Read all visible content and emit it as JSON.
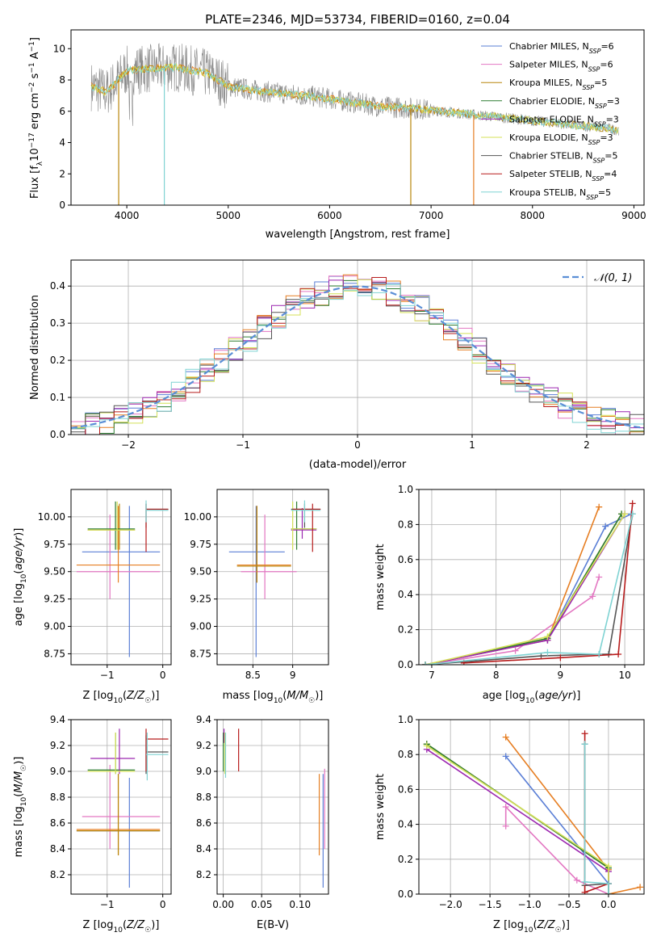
{
  "title": "PLATE=2346, MJD=53734, FIBERID=0160, z=0.04",
  "colors": {
    "Chabrier MILES": "#5b7fd6",
    "Salpeter MILES": "#e377c2",
    "Kroupa MILES": "#b8860b",
    "Chabrier ELODIE": "#2e7d32",
    "Salpeter ELODIE": "#9c27b0",
    "Kroupa ELODIE": "#d4e157",
    "Chabrier STELIB": "#555555",
    "Salpeter STELIB": "#b71c1c",
    "Kroupa STELIB": "#7fd3d3",
    "normal": "#5b8fd6",
    "spectrum": "#888888",
    "orange": "#e67e22"
  },
  "legend_top": {
    "entries": [
      {
        "name": "Chabrier MILES",
        "pre": "Chabrier MILES, N",
        "sub": "SSP",
        "post": "=6"
      },
      {
        "name": "Salpeter MILES",
        "pre": "Salpeter MILES, N",
        "sub": "SSP",
        "post": "=6"
      },
      {
        "name": "Kroupa MILES",
        "pre": "Kroupa MILES, N",
        "sub": "SSP",
        "post": "=5"
      },
      {
        "name": "Chabrier ELODIE",
        "pre": "Chabrier ELODIE, N",
        "sub": "SSP",
        "post": "=3"
      },
      {
        "name": "Salpeter ELODIE",
        "pre": "Salpeter ELODIE, N",
        "sub": "SSP",
        "post": "=3"
      },
      {
        "name": "Kroupa ELODIE",
        "pre": "Kroupa ELODIE, N",
        "sub": "SSP",
        "post": "=3"
      },
      {
        "name": "Chabrier STELIB",
        "pre": "Chabrier STELIB, N",
        "sub": "SSP",
        "post": "=5"
      },
      {
        "name": "Salpeter STELIB",
        "pre": "Salpeter STELIB, N",
        "sub": "SSP",
        "post": "=4"
      },
      {
        "name": "Kroupa STELIB",
        "pre": "Kroupa STELIB, N",
        "sub": "SSP",
        "post": "=5"
      }
    ]
  },
  "chart_data": [
    {
      "id": "spectrum",
      "type": "line",
      "xlabel": "wavelength [Angstrom, rest frame]",
      "ylabel": "Flux [f_λ 10^-17 erg cm^-2 s^-1 A^-1]",
      "xlim": [
        3450,
        9100
      ],
      "ylim": [
        0,
        11.2
      ],
      "xticks": [
        4000,
        5000,
        6000,
        7000,
        8000,
        9000
      ],
      "yticks": [
        0,
        2,
        4,
        6,
        8,
        10
      ],
      "continuum": {
        "x": [
          3650,
          3800,
          4000,
          4200,
          4500,
          4800,
          5000,
          5300,
          5600,
          5900,
          6200,
          6500,
          6800,
          7100,
          7400,
          7700,
          8000,
          8300,
          8600,
          8850
        ],
        "y": [
          7.6,
          7.2,
          8.6,
          8.7,
          8.8,
          8.4,
          7.6,
          7.3,
          7.1,
          6.9,
          6.6,
          6.3,
          6.2,
          6.0,
          5.8,
          5.6,
          5.4,
          5.2,
          5.0,
          4.8
        ]
      },
      "drops": [
        {
          "x": 3920,
          "color": "Kroupa MILES"
        },
        {
          "x": 4370,
          "color": "Kroupa STELIB"
        },
        {
          "x": 6800,
          "color": "Kroupa MILES"
        },
        {
          "x": 7420,
          "color": "orange"
        }
      ]
    },
    {
      "id": "residuals",
      "type": "histogram",
      "xlabel": "(data-model)/error",
      "ylabel": "Normed distribution",
      "xlim": [
        -2.5,
        2.5
      ],
      "ylim": [
        0,
        0.47
      ],
      "xticks": [
        -2,
        -1,
        0,
        1,
        2
      ],
      "yticks": [
        0.0,
        0.1,
        0.2,
        0.3,
        0.4
      ],
      "bin_width": 0.125,
      "legend": "𝒩(0, 1)"
    },
    {
      "id": "age_vs_Z",
      "type": "errorbar",
      "xlabel": "Z [log10(Z/Z☉)]",
      "ylabel": "age [log10(age/yr)]",
      "xlim": [
        -1.65,
        0.15
      ],
      "ylim": [
        8.65,
        10.25
      ],
      "xticks": [
        -1,
        0
      ],
      "yticks": [
        8.75,
        9.0,
        9.25,
        9.5,
        9.75,
        10.0
      ],
      "points": [
        {
          "c": "Chabrier MILES",
          "x": -0.6,
          "y": 9.68,
          "xe": [
            -1.45,
            -0.05
          ],
          "ye": [
            8.72,
            10.1
          ]
        },
        {
          "c": "Salpeter MILES",
          "x": -0.95,
          "y": 9.5,
          "xe": [
            -1.55,
            -0.05
          ],
          "ye": [
            9.25,
            10.02
          ]
        },
        {
          "c": "orange",
          "x": -0.8,
          "y": 9.56,
          "xe": [
            -1.55,
            -0.05
          ],
          "ye": [
            9.4,
            10.1
          ]
        },
        {
          "c": "Kroupa MILES",
          "x": -0.78,
          "y": 9.88,
          "xe": [
            -1.35,
            -0.5
          ],
          "ye": [
            9.7,
            10.12
          ]
        },
        {
          "c": "Chabrier ELODIE",
          "x": -0.85,
          "y": 9.89,
          "xe": [
            -1.35,
            -0.5
          ],
          "ye": [
            9.7,
            10.14
          ]
        },
        {
          "c": "Kroupa ELODIE",
          "x": -0.82,
          "y": 9.88,
          "xe": [
            -1.35,
            -0.5
          ],
          "ye": [
            9.7,
            10.14
          ]
        },
        {
          "c": "Chabrier STELIB",
          "x": -0.3,
          "y": 10.07,
          "xe": [
            -0.3,
            0.1
          ],
          "ye": [
            9.9,
            10.12
          ]
        },
        {
          "c": "Salpeter STELIB",
          "x": -0.3,
          "y": 10.07,
          "xe": [
            -0.3,
            0.1
          ],
          "ye": [
            9.68,
            10.12
          ]
        },
        {
          "c": "Kroupa STELIB",
          "x": -0.3,
          "y": 10.06,
          "xe": [
            -0.3,
            0.1
          ],
          "ye": [
            9.95,
            10.15
          ]
        }
      ]
    },
    {
      "id": "age_vs_mass",
      "type": "errorbar",
      "xlabel": "mass [log10(M/M☉)]",
      "ylabel": "",
      "xlim": [
        8.05,
        9.45
      ],
      "ylim": [
        8.65,
        10.25
      ],
      "xticks": [
        8.5,
        9.0
      ],
      "yticks": [
        8.75,
        9.0,
        9.25,
        9.5,
        9.75,
        10.0
      ],
      "points": [
        {
          "c": "Chabrier MILES",
          "x": 8.54,
          "y": 9.68,
          "xe": [
            8.2,
            8.9
          ],
          "ye": [
            8.72,
            10.1
          ]
        },
        {
          "c": "Salpeter MILES",
          "x": 8.65,
          "y": 9.5,
          "xe": [
            8.35,
            9.05
          ],
          "ye": [
            9.25,
            10.02
          ]
        },
        {
          "c": "orange",
          "x": 8.55,
          "y": 9.56,
          "xe": [
            8.3,
            8.98
          ],
          "ye": [
            9.4,
            10.1
          ]
        },
        {
          "c": "Kroupa MILES",
          "x": 8.55,
          "y": 9.55,
          "xe": [
            8.3,
            8.98
          ],
          "ye": [
            9.4,
            10.1
          ]
        },
        {
          "c": "Chabrier ELODIE",
          "x": 9.05,
          "y": 9.89,
          "xe": [
            8.98,
            9.3
          ],
          "ye": [
            9.7,
            10.14
          ]
        },
        {
          "c": "Salpeter ELODIE",
          "x": 9.12,
          "y": 9.88,
          "xe": [
            8.98,
            9.3
          ],
          "ye": [
            9.8,
            10.08
          ]
        },
        {
          "c": "Kroupa ELODIE",
          "x": 9.0,
          "y": 9.89,
          "xe": [
            8.98,
            9.3
          ],
          "ye": [
            9.7,
            10.14
          ]
        },
        {
          "c": "Chabrier STELIB",
          "x": 9.15,
          "y": 10.07,
          "xe": [
            8.98,
            9.35
          ],
          "ye": [
            9.9,
            10.12
          ]
        },
        {
          "c": "Salpeter STELIB",
          "x": 9.25,
          "y": 10.07,
          "xe": [
            9.0,
            9.35
          ],
          "ye": [
            9.68,
            10.12
          ]
        },
        {
          "c": "Kroupa STELIB",
          "x": 9.15,
          "y": 10.06,
          "xe": [
            8.98,
            9.35
          ],
          "ye": [
            9.95,
            10.15
          ]
        }
      ]
    },
    {
      "id": "mass_weight_vs_age",
      "type": "line",
      "xlabel": "age [log10(age/yr)]",
      "ylabel": "mass weight",
      "xlim": [
        6.8,
        10.3
      ],
      "ylim": [
        0,
        1.0
      ],
      "xticks": [
        7,
        8,
        9,
        10
      ],
      "yticks": [
        0.0,
        0.2,
        0.4,
        0.6,
        0.8,
        1.0
      ],
      "series": [
        {
          "c": "Chabrier MILES",
          "x": [
            6.9,
            8.8,
            9.7,
            10.1
          ],
          "y": [
            0.0,
            0.14,
            0.79,
            0.86
          ]
        },
        {
          "c": "Salpeter MILES",
          "x": [
            6.9,
            8.3,
            9.5,
            9.6
          ],
          "y": [
            0.0,
            0.08,
            0.39,
            0.5
          ]
        },
        {
          "c": "orange",
          "x": [
            6.9,
            8.8,
            9.6
          ],
          "y": [
            0.0,
            0.14,
            0.9
          ]
        },
        {
          "c": "Kroupa MILES",
          "x": [
            6.9,
            8.8,
            9.95
          ],
          "y": [
            0.0,
            0.15,
            0.86
          ]
        },
        {
          "c": "Chabrier ELODIE",
          "x": [
            6.9,
            8.8,
            9.95
          ],
          "y": [
            0.0,
            0.15,
            0.86
          ]
        },
        {
          "c": "Salpeter ELODIE",
          "x": [
            6.9,
            8.8,
            10.0
          ],
          "y": [
            0.0,
            0.14,
            0.86
          ]
        },
        {
          "c": "Kroupa ELODIE",
          "x": [
            6.9,
            8.8,
            10.0
          ],
          "y": [
            0.0,
            0.16,
            0.86
          ]
        },
        {
          "c": "Chabrier STELIB",
          "x": [
            6.9,
            8.7,
            9.6,
            9.75,
            10.12
          ],
          "y": [
            0.0,
            0.05,
            0.06,
            0.06,
            0.86
          ]
        },
        {
          "c": "Salpeter STELIB",
          "x": [
            7.5,
            9.0,
            9.9,
            10.12
          ],
          "y": [
            0.01,
            0.04,
            0.06,
            0.92
          ]
        },
        {
          "c": "Kroupa STELIB",
          "x": [
            6.9,
            8.8,
            9.6,
            10.12
          ],
          "y": [
            0.0,
            0.07,
            0.06,
            0.86
          ]
        }
      ]
    },
    {
      "id": "mass_vs_Z",
      "type": "errorbar",
      "xlabel": "Z [log10(Z/Z☉)]",
      "ylabel": "mass [log10(M/M☉)]",
      "xlim": [
        -1.65,
        0.15
      ],
      "ylim": [
        8.05,
        9.4
      ],
      "xticks": [
        -1,
        0
      ],
      "yticks": [
        8.2,
        8.4,
        8.6,
        8.8,
        9.0,
        9.2,
        9.4
      ],
      "points": [
        {
          "c": "Chabrier MILES",
          "x": -0.6,
          "y": 8.54,
          "xe": [
            -1.55,
            -0.05
          ],
          "ye": [
            8.1,
            8.95
          ]
        },
        {
          "c": "Salpeter MILES",
          "x": -0.95,
          "y": 8.65,
          "xe": [
            -1.45,
            -0.05
          ],
          "ye": [
            8.4,
            9.05
          ]
        },
        {
          "c": "orange",
          "x": -0.8,
          "y": 8.55,
          "xe": [
            -1.55,
            -0.05
          ],
          "ye": [
            8.35,
            8.98
          ]
        },
        {
          "c": "Kroupa MILES",
          "x": -0.8,
          "y": 8.54,
          "xe": [
            -1.55,
            -0.05
          ],
          "ye": [
            8.35,
            8.98
          ]
        },
        {
          "c": "Chabrier ELODIE",
          "x": -0.85,
          "y": 9.01,
          "xe": [
            -1.35,
            -0.5
          ],
          "ye": [
            8.98,
            9.3
          ]
        },
        {
          "c": "Salpeter ELODIE",
          "x": -0.78,
          "y": 9.1,
          "xe": [
            -1.3,
            -0.5
          ],
          "ye": [
            8.98,
            9.33
          ]
        },
        {
          "c": "Kroupa ELODIE",
          "x": -0.85,
          "y": 9.0,
          "xe": [
            -1.35,
            -0.5
          ],
          "ye": [
            8.98,
            9.3
          ]
        },
        {
          "c": "Chabrier STELIB",
          "x": -0.3,
          "y": 9.15,
          "xe": [
            -0.3,
            0.1
          ],
          "ye": [
            8.98,
            9.28
          ]
        },
        {
          "c": "Salpeter STELIB",
          "x": -0.3,
          "y": 9.25,
          "xe": [
            -0.3,
            0.1
          ],
          "ye": [
            9.0,
            9.33
          ]
        },
        {
          "c": "Kroupa STELIB",
          "x": -0.28,
          "y": 9.13,
          "xe": [
            -0.3,
            0.1
          ],
          "ye": [
            8.93,
            9.3
          ]
        }
      ]
    },
    {
      "id": "mass_vs_EBV",
      "type": "errorbar",
      "xlabel": "E(B-V)",
      "ylabel": "",
      "xlim": [
        -0.008,
        0.137
      ],
      "ylim": [
        8.05,
        9.4
      ],
      "xticks": [
        0.0,
        0.05,
        0.1
      ],
      "xticklabels": [
        "0.00",
        "0.05",
        "0.10"
      ],
      "yticks": [
        8.2,
        8.4,
        8.6,
        8.8,
        9.0,
        9.2,
        9.4
      ],
      "vlines": [
        {
          "c": "Chabrier MILES",
          "x": 0.13,
          "ye": [
            8.1,
            8.98
          ]
        },
        {
          "c": "Salpeter MILES",
          "x": 0.132,
          "ye": [
            8.4,
            9.02
          ]
        },
        {
          "c": "orange",
          "x": 0.125,
          "ye": [
            8.35,
            8.98
          ]
        },
        {
          "c": "Chabrier ELODIE",
          "x": 0.0,
          "ye": [
            9.0,
            9.3
          ]
        },
        {
          "c": "Salpeter ELODIE",
          "x": 0.001,
          "ye": [
            9.22,
            9.33
          ]
        },
        {
          "c": "Kroupa ELODIE",
          "x": 0.002,
          "ye": [
            8.98,
            9.3
          ]
        },
        {
          "c": "Salpeter STELIB",
          "x": 0.02,
          "ye": [
            9.0,
            9.33
          ]
        },
        {
          "c": "Kroupa STELIB",
          "x": 0.003,
          "ye": [
            8.95,
            9.3
          ]
        }
      ]
    },
    {
      "id": "mass_weight_vs_Z",
      "type": "line",
      "xlabel": "Z [log10(Z/Z☉)]",
      "ylabel": "mass weight",
      "xlim": [
        -2.4,
        0.45
      ],
      "ylim": [
        0,
        1.0
      ],
      "xticks": [
        -2.0,
        -1.5,
        -1.0,
        -0.5,
        0.0
      ],
      "xticklabels": [
        "−2.0",
        "−1.5",
        "−1.0",
        "−0.5",
        "0.0"
      ],
      "yticks": [
        0.0,
        0.2,
        0.4,
        0.6,
        0.8,
        1.0
      ],
      "series": [
        {
          "c": "Chabrier MILES",
          "x": [
            -1.3,
            0.0,
            0.0
          ],
          "y": [
            0.79,
            0.06,
            0.0
          ]
        },
        {
          "c": "Salpeter MILES",
          "x": [
            -1.3,
            -1.3,
            -0.4,
            0.0
          ],
          "y": [
            0.39,
            0.5,
            0.08,
            0.0
          ]
        },
        {
          "c": "orange",
          "x": [
            -1.3,
            0.0,
            0.0,
            0.4
          ],
          "y": [
            0.9,
            0.14,
            0.0,
            0.04
          ]
        },
        {
          "c": "Kroupa MILES",
          "x": [
            -2.3,
            0.0,
            0.0
          ],
          "y": [
            0.86,
            0.15,
            0.0
          ]
        },
        {
          "c": "Chabrier ELODIE",
          "x": [
            -2.3,
            0.0,
            0.0
          ],
          "y": [
            0.86,
            0.15,
            0.0
          ]
        },
        {
          "c": "Salpeter ELODIE",
          "x": [
            -2.3,
            0.0,
            0.0
          ],
          "y": [
            0.83,
            0.13,
            0.0
          ]
        },
        {
          "c": "Kroupa ELODIE",
          "x": [
            -2.3,
            0.0,
            0.0
          ],
          "y": [
            0.85,
            0.16,
            0.0
          ]
        },
        {
          "c": "Chabrier STELIB",
          "x": [
            -0.3,
            -0.3,
            0.0,
            0.0
          ],
          "y": [
            0.86,
            0.05,
            0.06,
            0.0
          ]
        },
        {
          "c": "Salpeter STELIB",
          "x": [
            -0.3,
            -0.3,
            0.0
          ],
          "y": [
            0.92,
            0.01,
            0.06
          ]
        },
        {
          "c": "Kroupa STELIB",
          "x": [
            -0.3,
            -0.3,
            0.0,
            0.0
          ],
          "y": [
            0.86,
            0.07,
            0.06,
            0.0
          ]
        }
      ]
    }
  ]
}
